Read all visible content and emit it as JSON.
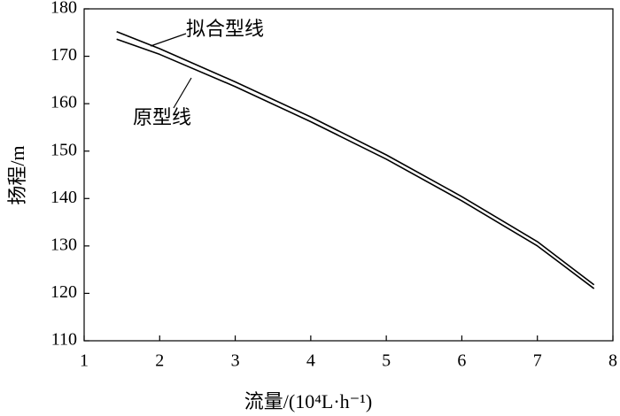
{
  "chart_data": {
    "type": "line",
    "x_label": "流量/(10⁴L·h⁻¹)",
    "y_label": "扬程/m",
    "x": [
      1.43,
      2,
      3,
      4,
      5,
      6,
      7,
      7.75
    ],
    "series": [
      {
        "name": "拟合型线",
        "color": "#000000",
        "values": [
          175.2,
          171.6,
          164.6,
          157.2,
          149.2,
          140.4,
          130.9,
          121.8
        ]
      },
      {
        "name": "原型线",
        "color": "#000000",
        "values": [
          173.6,
          170.4,
          163.6,
          156.2,
          148.3,
          139.5,
          130.0,
          121.0
        ]
      }
    ],
    "xlim": [
      1,
      8
    ],
    "xticks": [
      1,
      2,
      3,
      4,
      5,
      6,
      7,
      8
    ],
    "ylim": [
      110,
      180
    ],
    "yticks": [
      110,
      120,
      130,
      140,
      150,
      160,
      170,
      180
    ],
    "grid": false
  }
}
